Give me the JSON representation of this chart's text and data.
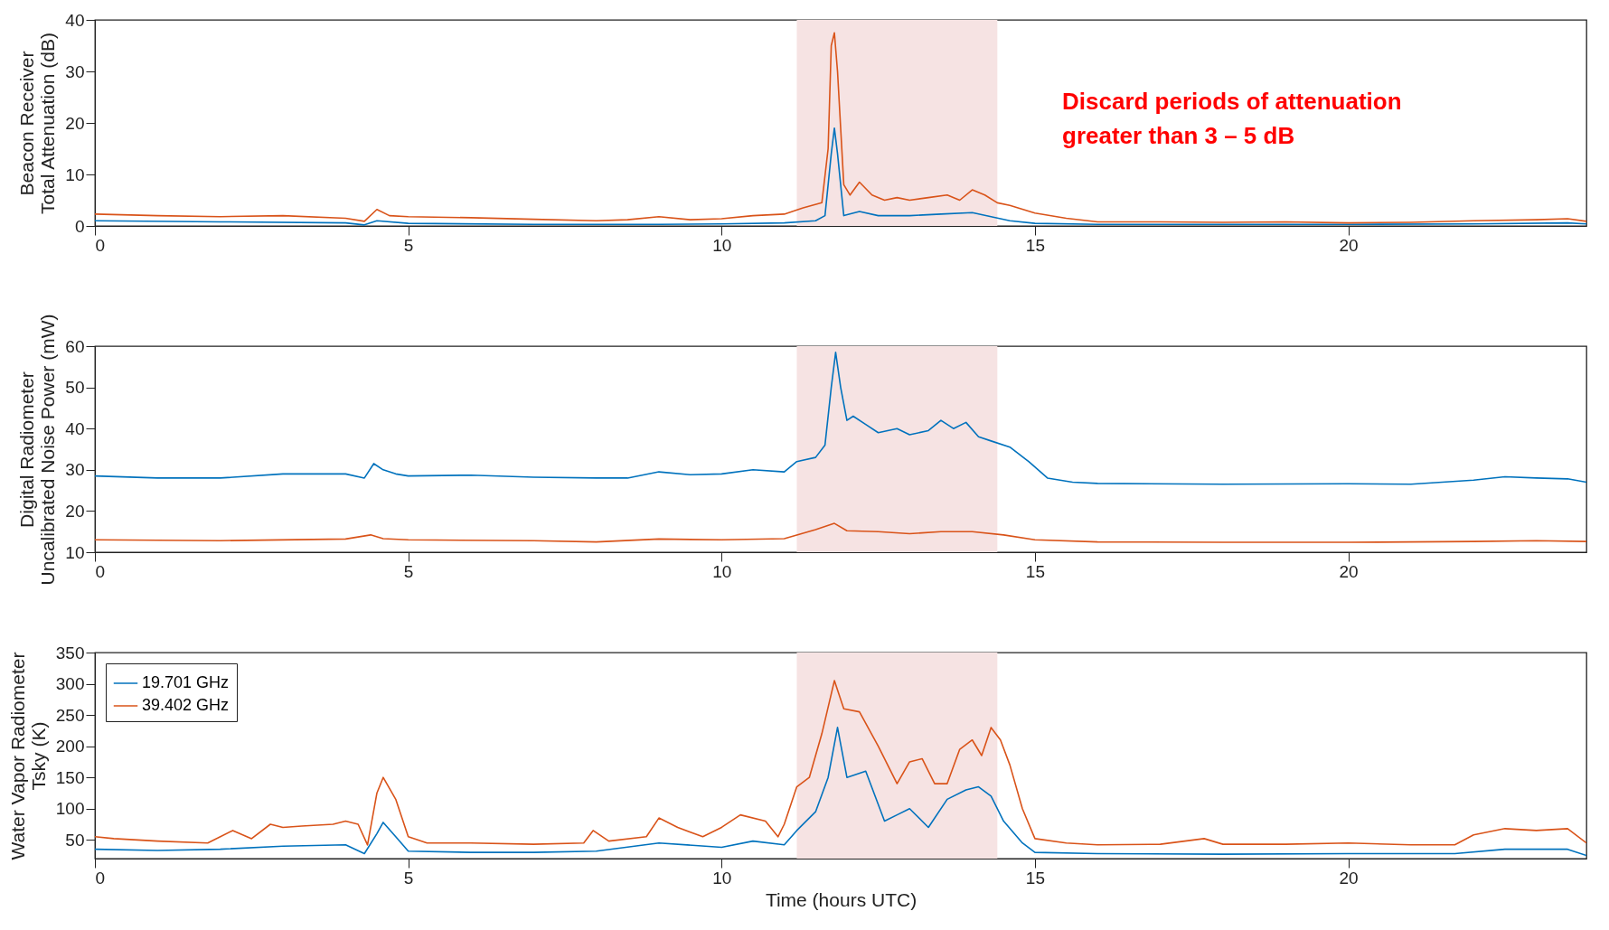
{
  "chart_data": [
    {
      "type": "line",
      "ylabel": "Beacon Receiver\nTotal Attenuation (dB)",
      "xlim": [
        0,
        23.8
      ],
      "xticks": [
        0,
        5,
        10,
        15,
        20
      ],
      "ylim": [
        0,
        40
      ],
      "yticks": [
        0,
        10,
        20,
        30,
        40
      ],
      "grid": false,
      "legend": false,
      "bands": [
        {
          "axis": "x",
          "from": 11.2,
          "to": 14.4,
          "color": "#f6e3e3"
        }
      ],
      "annotations": [
        "Discard periods of attenuation\ngreater than 3 – 5 dB"
      ],
      "series": [
        {
          "color": "#0072bd",
          "x": [
            0,
            2,
            4,
            4.3,
            4.5,
            5,
            7,
            9,
            10,
            11,
            11.5,
            11.65,
            11.75,
            11.8,
            11.85,
            11.95,
            12.2,
            12.5,
            13,
            13.5,
            14,
            14.3,
            14.6,
            15,
            16,
            18,
            20,
            22,
            23.5,
            23.8
          ],
          "values": [
            1.0,
            0.8,
            0.6,
            0.2,
            1.0,
            0.5,
            0.3,
            0.3,
            0.4,
            0.6,
            1.0,
            2,
            14,
            19,
            14,
            2,
            2.8,
            2.0,
            2.0,
            2.3,
            2.6,
            1.8,
            1.0,
            0.5,
            0.3,
            0.3,
            0.3,
            0.4,
            0.6,
            0.4
          ]
        },
        {
          "color": "#d95319",
          "x": [
            0,
            1,
            2,
            3,
            4,
            4.3,
            4.5,
            4.7,
            5,
            6,
            7,
            8,
            8.5,
            9,
            9.5,
            10,
            10.5,
            11,
            11.3,
            11.6,
            11.7,
            11.75,
            11.8,
            11.85,
            11.95,
            12.05,
            12.2,
            12.4,
            12.6,
            12.8,
            13,
            13.3,
            13.6,
            13.8,
            14,
            14.2,
            14.4,
            14.6,
            15,
            15.5,
            16,
            17,
            18,
            19,
            20,
            21,
            22,
            23,
            23.5,
            23.8
          ],
          "values": [
            2.3,
            2.0,
            1.8,
            2.0,
            1.5,
            0.9,
            3.2,
            2.0,
            1.8,
            1.6,
            1.3,
            1.0,
            1.2,
            1.8,
            1.2,
            1.4,
            2.0,
            2.3,
            3.5,
            4.5,
            15,
            35,
            37.5,
            30,
            8,
            6,
            8.5,
            6,
            5,
            5.5,
            5,
            5.5,
            6,
            5,
            7,
            6,
            4.5,
            4.0,
            2.5,
            1.5,
            0.8,
            0.8,
            0.7,
            0.8,
            0.6,
            0.7,
            1.0,
            1.2,
            1.4,
            0.9
          ]
        }
      ]
    },
    {
      "type": "line",
      "ylabel": "Digital Radiometer\nUncalibrated Noise Power (mW)",
      "xlim": [
        0,
        23.8
      ],
      "xticks": [
        0,
        5,
        10,
        15,
        20
      ],
      "ylim": [
        10,
        60
      ],
      "yticks": [
        10,
        20,
        30,
        40,
        50,
        60
      ],
      "grid": false,
      "legend": false,
      "bands": [
        {
          "axis": "x",
          "from": 11.2,
          "to": 14.4,
          "color": "#f6e3e3"
        }
      ],
      "series": [
        {
          "color": "#0072bd",
          "x": [
            0,
            1,
            2,
            3,
            4,
            4.3,
            4.45,
            4.6,
            4.8,
            5,
            6,
            7,
            8,
            8.5,
            9,
            9.5,
            10,
            10.5,
            11,
            11.2,
            11.5,
            11.65,
            11.75,
            11.82,
            11.9,
            12,
            12.1,
            12.3,
            12.5,
            12.8,
            13,
            13.3,
            13.5,
            13.7,
            13.9,
            14.1,
            14.3,
            14.6,
            14.9,
            15.2,
            15.6,
            16,
            18,
            20,
            21,
            22,
            22.5,
            23,
            23.5,
            23.8
          ],
          "values": [
            28.5,
            28,
            28,
            29,
            29,
            28,
            31.5,
            30,
            29,
            28.5,
            28.7,
            28.2,
            28,
            28,
            29.5,
            28.8,
            29,
            30,
            29.5,
            32,
            33,
            36,
            50,
            58.5,
            50,
            42,
            43,
            41,
            39,
            40,
            38.5,
            39.5,
            42,
            40,
            41.5,
            38,
            37,
            35.5,
            32,
            28,
            27,
            26.7,
            26.5,
            26.6,
            26.5,
            27.5,
            28.3,
            28,
            27.8,
            27
          ]
        },
        {
          "color": "#d95319",
          "x": [
            0,
            2,
            4,
            4.4,
            4.6,
            5,
            7,
            8,
            9,
            10,
            11,
            11.5,
            11.8,
            12,
            12.5,
            13,
            13.5,
            14,
            14.5,
            15,
            16,
            18,
            20,
            22,
            23,
            23.8
          ],
          "values": [
            13,
            12.8,
            13.2,
            14.2,
            13.3,
            13,
            12.8,
            12.5,
            13.2,
            13,
            13.3,
            15.5,
            17,
            15.2,
            15,
            14.5,
            15,
            15,
            14.2,
            13.0,
            12.5,
            12.4,
            12.4,
            12.6,
            12.8,
            12.6
          ]
        }
      ]
    },
    {
      "type": "line",
      "xlabel": "Time (hours UTC)",
      "ylabel": "Water Vapor Radiometer\nTsky (K)",
      "xlim": [
        0,
        23.8
      ],
      "xticks": [
        0,
        5,
        10,
        15,
        20
      ],
      "ylim": [
        20,
        350
      ],
      "yticks": [
        50,
        100,
        150,
        200,
        250,
        300,
        350
      ],
      "grid": false,
      "legend": "top left",
      "bands": [
        {
          "axis": "x",
          "from": 11.2,
          "to": 14.4,
          "color": "#f6e3e3"
        }
      ],
      "series": [
        {
          "name": "19.701 GHz",
          "color": "#0072bd",
          "x": [
            0,
            1,
            2,
            3,
            4,
            4.3,
            4.5,
            4.6,
            4.8,
            5,
            6,
            7,
            8,
            9,
            10,
            10.5,
            11,
            11.2,
            11.5,
            11.7,
            11.85,
            12,
            12.3,
            12.6,
            12.8,
            13,
            13.3,
            13.6,
            13.9,
            14.1,
            14.3,
            14.5,
            14.8,
            15,
            16,
            18,
            20,
            21.7,
            22.5,
            23.5,
            23.8
          ],
          "values": [
            35,
            33,
            35,
            40,
            42,
            28,
            60,
            78,
            55,
            32,
            30,
            30,
            32,
            45,
            38,
            48,
            42,
            65,
            95,
            150,
            230,
            150,
            160,
            80,
            90,
            100,
            70,
            115,
            130,
            135,
            120,
            80,
            45,
            30,
            28,
            27,
            28,
            28,
            35,
            35,
            25
          ]
        },
        {
          "name": "39.402 GHz",
          "color": "#d95319",
          "x": [
            0,
            0.3,
            1,
            1.8,
            2.2,
            2.5,
            2.8,
            3,
            3.3,
            3.8,
            4,
            4.2,
            4.35,
            4.5,
            4.6,
            4.8,
            5,
            5.3,
            6,
            7,
            7.8,
            7.95,
            8.2,
            8.8,
            9,
            9.3,
            9.7,
            10,
            10.3,
            10.7,
            10.9,
            11,
            11.2,
            11.4,
            11.6,
            11.8,
            11.95,
            12.2,
            12.5,
            12.8,
            13,
            13.2,
            13.4,
            13.6,
            13.8,
            14,
            14.15,
            14.3,
            14.45,
            14.6,
            14.8,
            15,
            15.5,
            16,
            17,
            17.7,
            18,
            19,
            20,
            21,
            21.7,
            22,
            22.5,
            23,
            23.5,
            23.8
          ],
          "values": [
            55,
            52,
            48,
            45,
            65,
            52,
            75,
            70,
            72,
            75,
            80,
            75,
            42,
            125,
            150,
            115,
            55,
            45,
            45,
            43,
            45,
            65,
            48,
            55,
            85,
            70,
            55,
            70,
            90,
            80,
            55,
            75,
            135,
            150,
            220,
            305,
            260,
            255,
            200,
            140,
            175,
            180,
            140,
            140,
            195,
            210,
            185,
            230,
            210,
            170,
            100,
            52,
            45,
            42,
            43,
            52,
            43,
            43,
            45,
            42,
            42,
            58,
            68,
            65,
            68,
            45
          ]
        }
      ]
    }
  ]
}
